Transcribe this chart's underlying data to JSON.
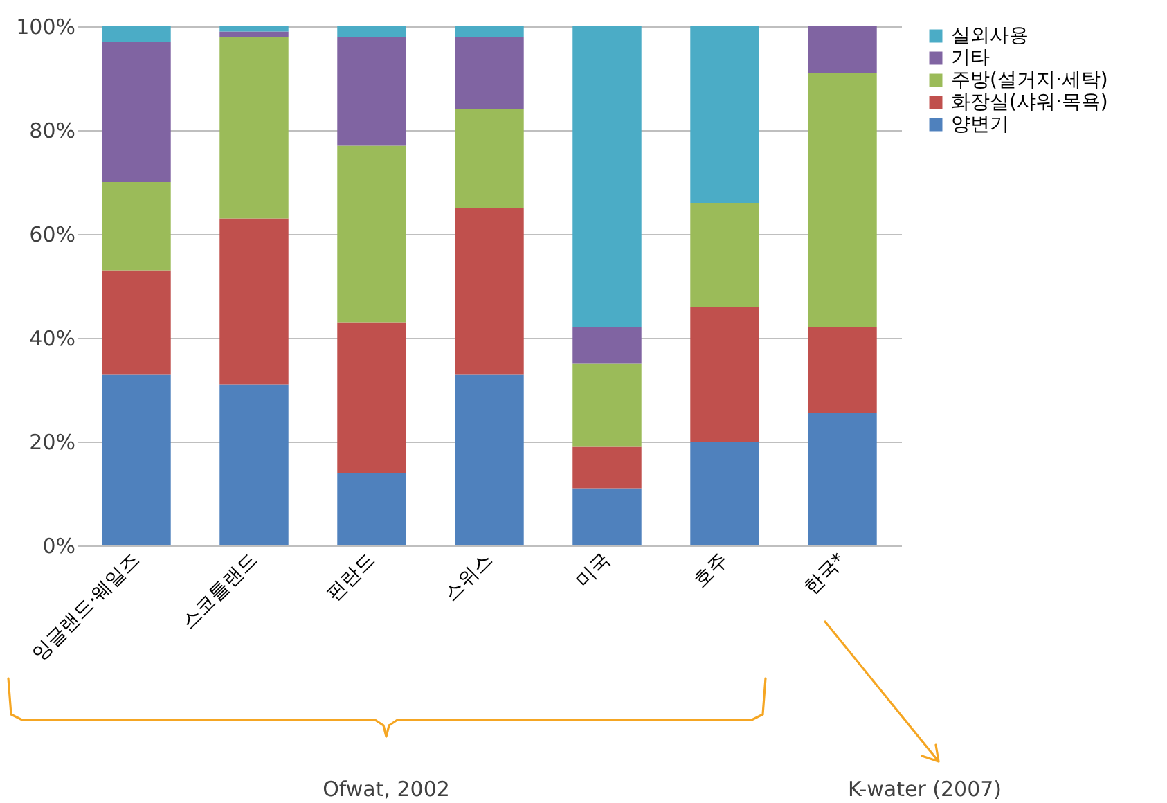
{
  "chart_data": {
    "type": "bar",
    "stacked": true,
    "categories": [
      "잉글랜드·웨일즈",
      "스코틀랜드",
      "핀란드",
      "스위스",
      "미국",
      "호주",
      "한국*"
    ],
    "series": [
      {
        "name": "양변기",
        "color": "#4f81bd",
        "values": [
          33,
          31,
          14,
          33,
          11,
          20,
          25.5
        ]
      },
      {
        "name": "화장실(샤워·목욕)",
        "color": "#c0504d",
        "values": [
          20,
          32,
          29,
          32,
          8,
          26,
          16.5
        ]
      },
      {
        "name": "주방(설거지·세탁)",
        "color": "#9bbb59",
        "values": [
          17,
          35,
          34,
          19,
          16,
          20,
          49
        ]
      },
      {
        "name": "기타",
        "color": "#8064a2",
        "values": [
          27,
          1,
          21,
          14,
          7,
          0,
          9
        ]
      },
      {
        "name": "실외사용",
        "color": "#4bacc6",
        "values": [
          3,
          1,
          2,
          2,
          58,
          34,
          0
        ]
      }
    ],
    "ylim": [
      0,
      100
    ],
    "yticks": [
      {
        "value": 0,
        "label": "0%"
      },
      {
        "value": 20,
        "label": "20%"
      },
      {
        "value": 40,
        "label": "40%"
      },
      {
        "value": 60,
        "label": "60%"
      },
      {
        "value": 80,
        "label": "80%"
      },
      {
        "value": 100,
        "label": "100%"
      }
    ],
    "grid": "y",
    "legend": "right",
    "annotations": [
      "Ofwat, 2002",
      "K-water (2007)"
    ]
  }
}
